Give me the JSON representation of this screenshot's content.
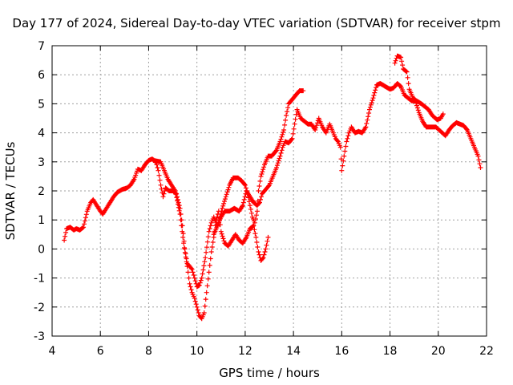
{
  "chart_data": {
    "type": "scatter",
    "title": "Day 177 of 2024, Sidereal Day-to-day VTEC variation (SDTVAR) for receiver stpm",
    "xlabel": "GPS time / hours",
    "ylabel": "SDTVAR / TECUs",
    "xlim": [
      4,
      22
    ],
    "ylim": [
      -3,
      7
    ],
    "xticks": [
      "4",
      "6",
      "8",
      "10",
      "12",
      "14",
      "16",
      "18",
      "20",
      "22"
    ],
    "yticks": [
      "-3",
      "-2",
      "-1",
      "0",
      "1",
      "2",
      "3",
      "4",
      "5",
      "6",
      "7"
    ],
    "grid": true,
    "marker": "+",
    "series": [
      {
        "color": "#ff0000",
        "segments": [
          [
            [
              4.5,
              0.3
            ],
            [
              4.6,
              0.7
            ],
            [
              4.75,
              0.75
            ],
            [
              4.9,
              0.65
            ],
            [
              5.0,
              0.7
            ],
            [
              5.15,
              0.65
            ],
            [
              5.3,
              0.75
            ],
            [
              5.45,
              1.3
            ],
            [
              5.6,
              1.6
            ],
            [
              5.7,
              1.7
            ],
            [
              5.85,
              1.5
            ],
            [
              6.0,
              1.3
            ],
            [
              6.1,
              1.2
            ],
            [
              6.25,
              1.4
            ],
            [
              6.4,
              1.6
            ],
            [
              6.55,
              1.8
            ],
            [
              6.7,
              1.95
            ],
            [
              6.9,
              2.05
            ],
            [
              7.1,
              2.1
            ],
            [
              7.25,
              2.2
            ],
            [
              7.4,
              2.4
            ],
            [
              7.55,
              2.75
            ],
            [
              7.7,
              2.7
            ],
            [
              7.85,
              2.9
            ],
            [
              8.0,
              3.05
            ],
            [
              8.15,
              3.1
            ],
            [
              8.3,
              3.0
            ],
            [
              8.4,
              2.7
            ],
            [
              8.5,
              2.2
            ],
            [
              8.6,
              1.8
            ],
            [
              8.7,
              2.1
            ],
            [
              8.85,
              2.0
            ],
            [
              9.0,
              2.0
            ],
            [
              9.15,
              1.9
            ],
            [
              9.3,
              1.4
            ],
            [
              9.4,
              0.8
            ],
            [
              9.5,
              0.0
            ],
            [
              9.6,
              -0.5
            ],
            [
              9.7,
              -0.6
            ],
            [
              9.8,
              -0.7
            ],
            [
              9.9,
              -1.0
            ],
            [
              10.0,
              -1.3
            ],
            [
              10.1,
              -1.25
            ],
            [
              10.2,
              -1.0
            ],
            [
              10.35,
              -0.3
            ],
            [
              10.5,
              0.6
            ],
            [
              10.6,
              0.9
            ],
            [
              10.7,
              1.1
            ],
            [
              10.85,
              0.8
            ],
            [
              11.0,
              1.1
            ],
            [
              11.15,
              1.3
            ],
            [
              11.35,
              1.3
            ],
            [
              11.55,
              1.4
            ],
            [
              11.75,
              1.3
            ],
            [
              11.9,
              1.5
            ],
            [
              12.05,
              2.0
            ],
            [
              12.2,
              1.8
            ],
            [
              12.35,
              1.6
            ],
            [
              12.5,
              1.5
            ],
            [
              12.6,
              1.6
            ],
            [
              12.7,
              1.9
            ],
            [
              12.8,
              2.0
            ],
            [
              12.9,
              2.1
            ],
            [
              13.0,
              2.2
            ],
            [
              13.15,
              2.5
            ],
            [
              13.3,
              2.8
            ],
            [
              13.45,
              3.2
            ],
            [
              13.55,
              3.5
            ],
            [
              13.65,
              3.7
            ],
            [
              13.8,
              3.65
            ],
            [
              13.95,
              3.8
            ],
            [
              14.05,
              4.3
            ],
            [
              14.15,
              4.8
            ],
            [
              14.3,
              4.5
            ],
            [
              14.45,
              4.4
            ],
            [
              14.6,
              4.3
            ],
            [
              14.75,
              4.3
            ],
            [
              14.9,
              4.1
            ],
            [
              15.05,
              4.5
            ],
            [
              15.2,
              4.2
            ],
            [
              15.35,
              4.0
            ],
            [
              15.5,
              4.3
            ],
            [
              15.65,
              4.0
            ],
            [
              15.75,
              3.8
            ],
            [
              15.85,
              3.7
            ],
            [
              15.95,
              3.5
            ],
            [
              16.0,
              2.7
            ],
            [
              16.1,
              3.2
            ],
            [
              16.2,
              3.7
            ],
            [
              16.3,
              4.0
            ],
            [
              16.4,
              4.2
            ],
            [
              16.55,
              4.0
            ],
            [
              16.7,
              4.05
            ],
            [
              16.85,
              4.0
            ],
            [
              17.0,
              4.2
            ],
            [
              17.15,
              4.8
            ],
            [
              17.3,
              5.2
            ],
            [
              17.45,
              5.65
            ],
            [
              17.6,
              5.7
            ],
            [
              17.8,
              5.6
            ],
            [
              18.0,
              5.5
            ],
            [
              18.15,
              5.55
            ],
            [
              18.3,
              5.7
            ],
            [
              18.45,
              5.6
            ],
            [
              18.6,
              5.3
            ],
            [
              18.75,
              5.2
            ],
            [
              18.9,
              5.1
            ],
            [
              19.05,
              5.1
            ],
            [
              19.2,
              4.7
            ],
            [
              19.35,
              4.4
            ],
            [
              19.5,
              4.2
            ],
            [
              19.7,
              4.2
            ],
            [
              19.9,
              4.2
            ],
            [
              20.1,
              4.05
            ],
            [
              20.3,
              3.9
            ],
            [
              20.45,
              4.1
            ],
            [
              20.6,
              4.25
            ],
            [
              20.75,
              4.35
            ],
            [
              20.9,
              4.3
            ],
            [
              21.05,
              4.25
            ],
            [
              21.2,
              4.1
            ],
            [
              21.35,
              3.8
            ],
            [
              21.5,
              3.5
            ],
            [
              21.65,
              3.2
            ],
            [
              21.75,
              2.8
            ]
          ],
          [
            [
              8.2,
              3.05
            ],
            [
              8.5,
              3.0
            ],
            [
              8.8,
              2.4
            ],
            [
              9.1,
              2.0
            ],
            [
              9.3,
              1.2
            ],
            [
              9.45,
              0.2
            ],
            [
              9.6,
              -0.6
            ],
            [
              9.7,
              -1.2
            ],
            [
              9.8,
              -1.5
            ],
            [
              9.9,
              -1.7
            ],
            [
              10.0,
              -2.0
            ],
            [
              10.1,
              -2.3
            ],
            [
              10.2,
              -2.4
            ],
            [
              10.3,
              -2.2
            ],
            [
              10.4,
              -1.5
            ],
            [
              10.5,
              -0.8
            ],
            [
              10.6,
              -0.1
            ],
            [
              10.7,
              0.4
            ],
            [
              10.8,
              1.0
            ],
            [
              10.9,
              1.3
            ],
            [
              11.0,
              0.6
            ],
            [
              11.15,
              0.2
            ],
            [
              11.3,
              0.1
            ],
            [
              11.45,
              0.3
            ],
            [
              11.6,
              0.5
            ],
            [
              11.75,
              0.3
            ],
            [
              11.9,
              0.2
            ],
            [
              12.05,
              0.4
            ],
            [
              12.2,
              0.7
            ],
            [
              12.35,
              0.8
            ],
            [
              12.45,
              0.4
            ],
            [
              12.55,
              -0.1
            ],
            [
              12.65,
              -0.4
            ],
            [
              12.75,
              -0.3
            ],
            [
              12.85,
              0.0
            ],
            [
              12.95,
              0.4
            ]
          ],
          [
            [
              10.7,
              0.5
            ],
            [
              10.9,
              0.9
            ],
            [
              11.05,
              1.4
            ],
            [
              11.2,
              1.8
            ],
            [
              11.35,
              2.2
            ],
            [
              11.5,
              2.45
            ],
            [
              11.7,
              2.45
            ],
            [
              11.85,
              2.35
            ],
            [
              12.0,
              2.2
            ],
            [
              12.1,
              1.9
            ],
            [
              12.2,
              1.5
            ],
            [
              12.3,
              1.1
            ],
            [
              12.4,
              0.9
            ],
            [
              12.5,
              1.3
            ],
            [
              12.55,
              2.0
            ],
            [
              12.65,
              2.5
            ],
            [
              12.8,
              2.9
            ],
            [
              12.95,
              3.2
            ],
            [
              13.1,
              3.2
            ],
            [
              13.3,
              3.4
            ],
            [
              13.45,
              3.7
            ],
            [
              13.6,
              4.1
            ],
            [
              13.7,
              4.6
            ],
            [
              13.8,
              5.0
            ],
            [
              13.95,
              5.15
            ],
            [
              14.1,
              5.3
            ],
            [
              14.25,
              5.45
            ],
            [
              14.4,
              5.45
            ]
          ],
          [
            [
              18.2,
              6.4
            ],
            [
              18.3,
              6.65
            ],
            [
              18.45,
              6.6
            ],
            [
              18.55,
              6.2
            ],
            [
              18.7,
              6.1
            ],
            [
              18.8,
              5.5
            ],
            [
              18.95,
              5.2
            ],
            [
              19.1,
              5.1
            ],
            [
              19.3,
              5.0
            ],
            [
              19.45,
              4.9
            ],
            [
              19.6,
              4.8
            ],
            [
              19.75,
              4.6
            ],
            [
              19.95,
              4.45
            ],
            [
              20.1,
              4.5
            ],
            [
              20.2,
              4.65
            ]
          ]
        ]
      }
    ]
  }
}
